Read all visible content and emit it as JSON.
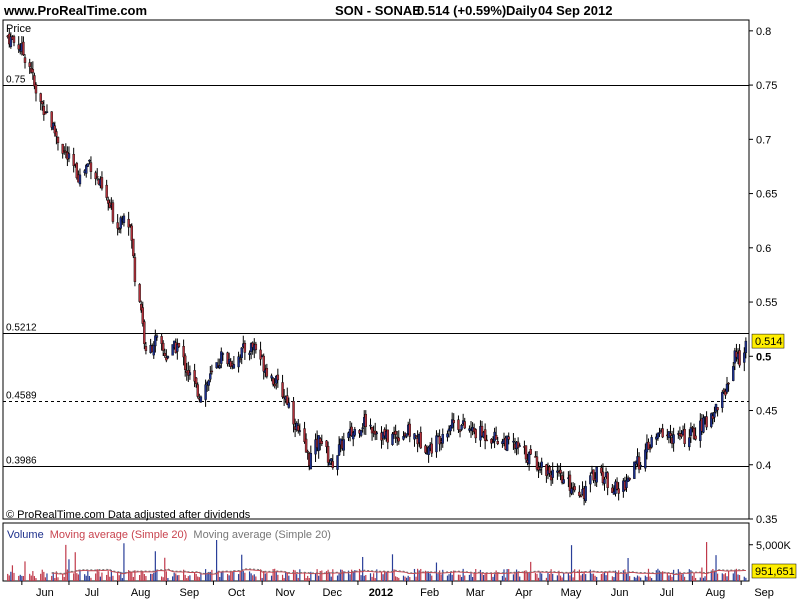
{
  "header": {
    "site": "www.ProRealTime.com",
    "symbol": "SON - SONAE",
    "price_change": "0.514 (+0.59%)",
    "period": "Daily",
    "date": "04 Sep 2012"
  },
  "colors": {
    "up": "#1c2f8c",
    "down": "#b0303a",
    "volume_up": "#2a3f99",
    "volume_down": "#c0394a",
    "ma_red": "#c8434e",
    "ma_gray": "#777777",
    "current_price_badge": "#ffee00"
  },
  "chart_data": [
    {
      "type": "candlestick",
      "title": "Price",
      "ylim": [
        0.35,
        0.81
      ],
      "ytick_labels": [
        "0.8",
        "0.75",
        "0.7",
        "0.65",
        "0.6",
        "0.55",
        "0.5",
        "0.45",
        "0.4",
        "0.35"
      ],
      "ytick_values": [
        0.8,
        0.75,
        0.7,
        0.65,
        0.6,
        0.55,
        0.5,
        0.45,
        0.4,
        0.35
      ],
      "xtick_labels": [
        "Jun",
        "Jul",
        "Aug",
        "Sep",
        "Oct",
        "Nov",
        "Dec",
        "2012",
        "Feb",
        "Mar",
        "Apr",
        "May",
        "Jun",
        "Jul",
        "Aug",
        "Sep"
      ],
      "levels": [
        {
          "value": 0.75,
          "label": "0.75",
          "style": "solid"
        },
        {
          "value": 0.5212,
          "label": "0.5212",
          "style": "solid"
        },
        {
          "value": 0.4589,
          "label": "0.4589",
          "style": "dashed"
        },
        {
          "value": 0.3986,
          "label": "0.3986",
          "style": "solid"
        }
      ],
      "current_price": 0.514,
      "current_price_label": "0.514",
      "close_path": [
        [
          "2011-05-23",
          0.795
        ],
        [
          "2011-05-31",
          0.785
        ],
        [
          "2011-06-07",
          0.765
        ],
        [
          "2011-06-10",
          0.74
        ],
        [
          "2011-06-17",
          0.725
        ],
        [
          "2011-06-24",
          0.7
        ],
        [
          "2011-07-01",
          0.68
        ],
        [
          "2011-07-08",
          0.665
        ],
        [
          "2011-07-14",
          0.68
        ],
        [
          "2011-07-20",
          0.66
        ],
        [
          "2011-07-26",
          0.64
        ],
        [
          "2011-08-01",
          0.62
        ],
        [
          "2011-08-05",
          0.635
        ],
        [
          "2011-08-09",
          0.62
        ],
        [
          "2011-08-12",
          0.575
        ],
        [
          "2011-08-16",
          0.545
        ],
        [
          "2011-08-19",
          0.5
        ],
        [
          "2011-08-25",
          0.515
        ],
        [
          "2011-09-01",
          0.5
        ],
        [
          "2011-09-08",
          0.51
        ],
        [
          "2011-09-15",
          0.485
        ],
        [
          "2011-09-22",
          0.465
        ],
        [
          "2011-09-29",
          0.48
        ],
        [
          "2011-10-06",
          0.5
        ],
        [
          "2011-10-13",
          0.495
        ],
        [
          "2011-10-20",
          0.505
        ],
        [
          "2011-10-27",
          0.51
        ],
        [
          "2011-11-03",
          0.49
        ],
        [
          "2011-11-10",
          0.475
        ],
        [
          "2011-11-17",
          0.46
        ],
        [
          "2011-11-24",
          0.43
        ],
        [
          "2011-12-01",
          0.405
        ],
        [
          "2011-12-08",
          0.425
        ],
        [
          "2011-12-15",
          0.4
        ],
        [
          "2011-12-22",
          0.42
        ],
        [
          "2012-01-05",
          0.44
        ],
        [
          "2012-01-19",
          0.425
        ],
        [
          "2012-02-02",
          0.43
        ],
        [
          "2012-02-16",
          0.415
        ],
        [
          "2012-03-01",
          0.44
        ],
        [
          "2012-03-15",
          0.43
        ],
        [
          "2012-03-29",
          0.425
        ],
        [
          "2012-04-12",
          0.415
        ],
        [
          "2012-04-26",
          0.4
        ],
        [
          "2012-05-10",
          0.385
        ],
        [
          "2012-05-24",
          0.375
        ],
        [
          "2012-06-01",
          0.395
        ],
        [
          "2012-06-08",
          0.385
        ],
        [
          "2012-06-15",
          0.375
        ],
        [
          "2012-06-22",
          0.39
        ],
        [
          "2012-06-29",
          0.405
        ],
        [
          "2012-07-06",
          0.42
        ],
        [
          "2012-07-13",
          0.43
        ],
        [
          "2012-07-20",
          0.425
        ],
        [
          "2012-07-27",
          0.425
        ],
        [
          "2012-08-03",
          0.43
        ],
        [
          "2012-08-10",
          0.44
        ],
        [
          "2012-08-17",
          0.455
        ],
        [
          "2012-08-24",
          0.475
        ],
        [
          "2012-08-28",
          0.505
        ],
        [
          "2012-08-31",
          0.495
        ],
        [
          "2012-09-04",
          0.514
        ]
      ]
    },
    {
      "type": "bar",
      "title": "Volume",
      "legend": [
        "Volume",
        "Moving average (Simple 20)",
        "Moving average (Simple 20)"
      ],
      "ytick_labels": [
        "5,000K"
      ],
      "ytick_values": [
        5000
      ],
      "ylim": [
        0,
        8000
      ],
      "unit": "K",
      "current_value_label": "951,651",
      "current_value": 951651
    }
  ],
  "notes": {
    "copyright": "© ProRealTime.com Data adjusted after dividends"
  }
}
